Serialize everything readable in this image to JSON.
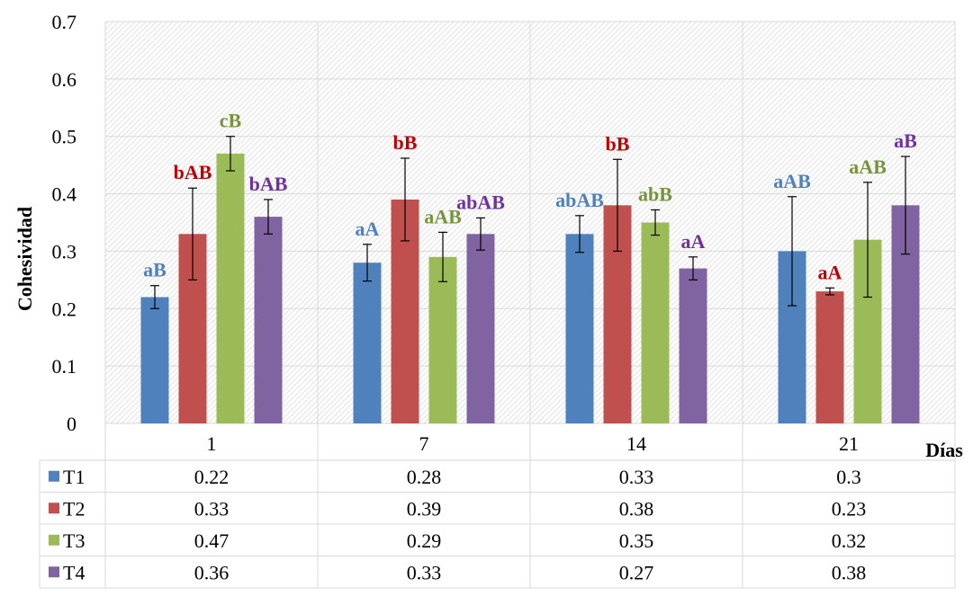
{
  "chart_data": {
    "type": "bar",
    "title": "",
    "xlabel": "Días",
    "ylabel": "Cohesividad",
    "ylim": [
      0,
      0.7
    ],
    "yticks": [
      0,
      0.1,
      0.2,
      0.3,
      0.4,
      0.5,
      0.6,
      0.7
    ],
    "ytick_labels": [
      "0",
      "0.1",
      "0.2",
      "0.3",
      "0.4",
      "0.5",
      "0.6",
      "0.7"
    ],
    "categories": [
      "1",
      "7",
      "14",
      "21"
    ],
    "grid": true,
    "legend": "data-table",
    "series": [
      {
        "name": "T1",
        "color": "#4f81bd",
        "label_color": "#4f81bd",
        "values": [
          0.22,
          0.28,
          0.33,
          0.3
        ],
        "errors": [
          0.02,
          0.032,
          0.032,
          0.095
        ],
        "value_labels": [
          "0.22",
          "0.28",
          "0.33",
          "0.3"
        ],
        "letters": [
          "aB",
          "aA",
          "abAB",
          "aAB"
        ]
      },
      {
        "name": "T2",
        "color": "#c0504d",
        "label_color": "#c00000",
        "values": [
          0.33,
          0.39,
          0.38,
          0.23
        ],
        "errors": [
          0.08,
          0.072,
          0.08,
          0.006
        ],
        "value_labels": [
          "0.33",
          "0.39",
          "0.38",
          "0.23"
        ],
        "letters": [
          "bAB",
          "bB",
          "bB",
          "aA"
        ]
      },
      {
        "name": "T3",
        "color": "#9bbb59",
        "label_color": "#77933c",
        "values": [
          0.47,
          0.29,
          0.35,
          0.32
        ],
        "errors": [
          0.03,
          0.043,
          0.022,
          0.1
        ],
        "value_labels": [
          "0.47",
          "0.29",
          "0.35",
          "0.32"
        ],
        "letters": [
          "cB",
          "aAB",
          "abB",
          "aAB"
        ]
      },
      {
        "name": "T4",
        "color": "#8064a2",
        "label_color": "#7030a0",
        "values": [
          0.36,
          0.33,
          0.27,
          0.38
        ],
        "errors": [
          0.03,
          0.028,
          0.02,
          0.085
        ],
        "value_labels": [
          "0.36",
          "0.33",
          "0.27",
          "0.38"
        ],
        "letters": [
          "bAB",
          "abAB",
          "aA",
          "aB"
        ]
      }
    ]
  }
}
